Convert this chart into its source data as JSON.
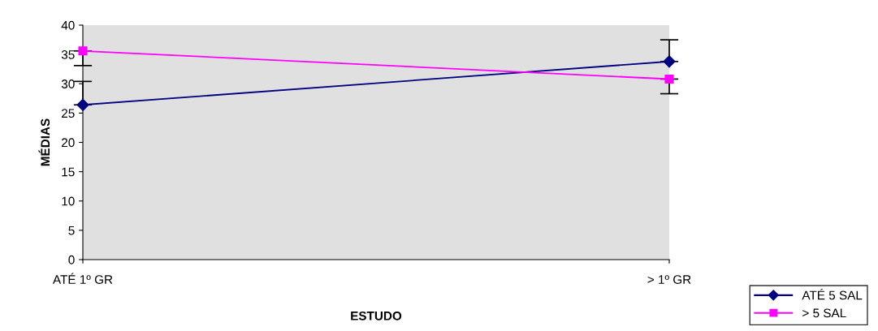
{
  "chart_data": {
    "type": "line",
    "xlabel": "ESTUDO",
    "ylabel": "MÉDIAS",
    "categories": [
      "ATÉ 1º GR",
      "> 1º GR"
    ],
    "series": [
      {
        "name": "ATÉ 5 SAL",
        "color": "#000080",
        "marker": "diamond",
        "values": [
          26.4,
          33.8
        ],
        "errors": [
          [
            26.4,
            30.4
          ],
          [
            33.8,
            37.5
          ]
        ]
      },
      {
        "name": "> 5 SAL",
        "color": "#ff00ff",
        "marker": "square",
        "values": [
          35.6,
          30.8
        ],
        "errors": [
          [
            33.1,
            35.6
          ],
          [
            28.3,
            30.8
          ]
        ]
      }
    ],
    "ylim": [
      0,
      40
    ],
    "yticks": [
      0,
      5,
      10,
      15,
      20,
      25,
      30,
      35,
      40
    ],
    "bands": [
      {
        "axis": "y",
        "from": 0,
        "to": 40,
        "color": "#e0e0e0"
      }
    ],
    "grid": false,
    "legend": "bottom right"
  }
}
